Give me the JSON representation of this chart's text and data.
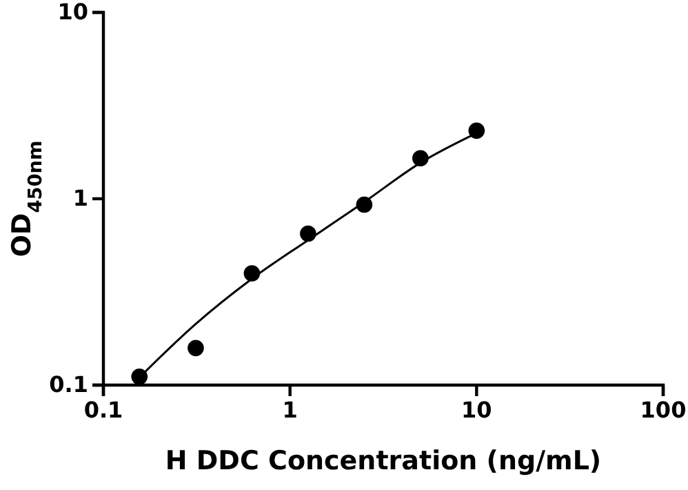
{
  "chart_data": {
    "type": "scatter",
    "xlabel": "H DDC Concentration (ng/mL)",
    "ylabel": "OD$_{450nm}$",
    "log": "xy",
    "xlim": [
      0.1,
      100
    ],
    "ylim": [
      0.1,
      10
    ],
    "xticks": [
      0.1,
      1,
      10,
      100
    ],
    "yticks": [
      0.1,
      1,
      10
    ],
    "grid": false,
    "series": [
      {
        "marker": "circle",
        "color": "#000000",
        "x": [
          0.156,
          0.3125,
          0.625,
          1.25,
          2.5,
          5,
          10
        ],
        "values": [
          0.111,
          0.158,
          0.398,
          0.65,
          0.93,
          1.65,
          2.32
        ]
      },
      {
        "type": "line",
        "marker": "none",
        "line_style": "solid",
        "color": "#000000",
        "x": [
          0.156,
          0.3125,
          0.625,
          1.25,
          2.5,
          5,
          10
        ],
        "values": [
          0.11,
          0.213,
          0.372,
          0.6,
          0.96,
          1.56,
          2.25
        ]
      }
    ]
  }
}
